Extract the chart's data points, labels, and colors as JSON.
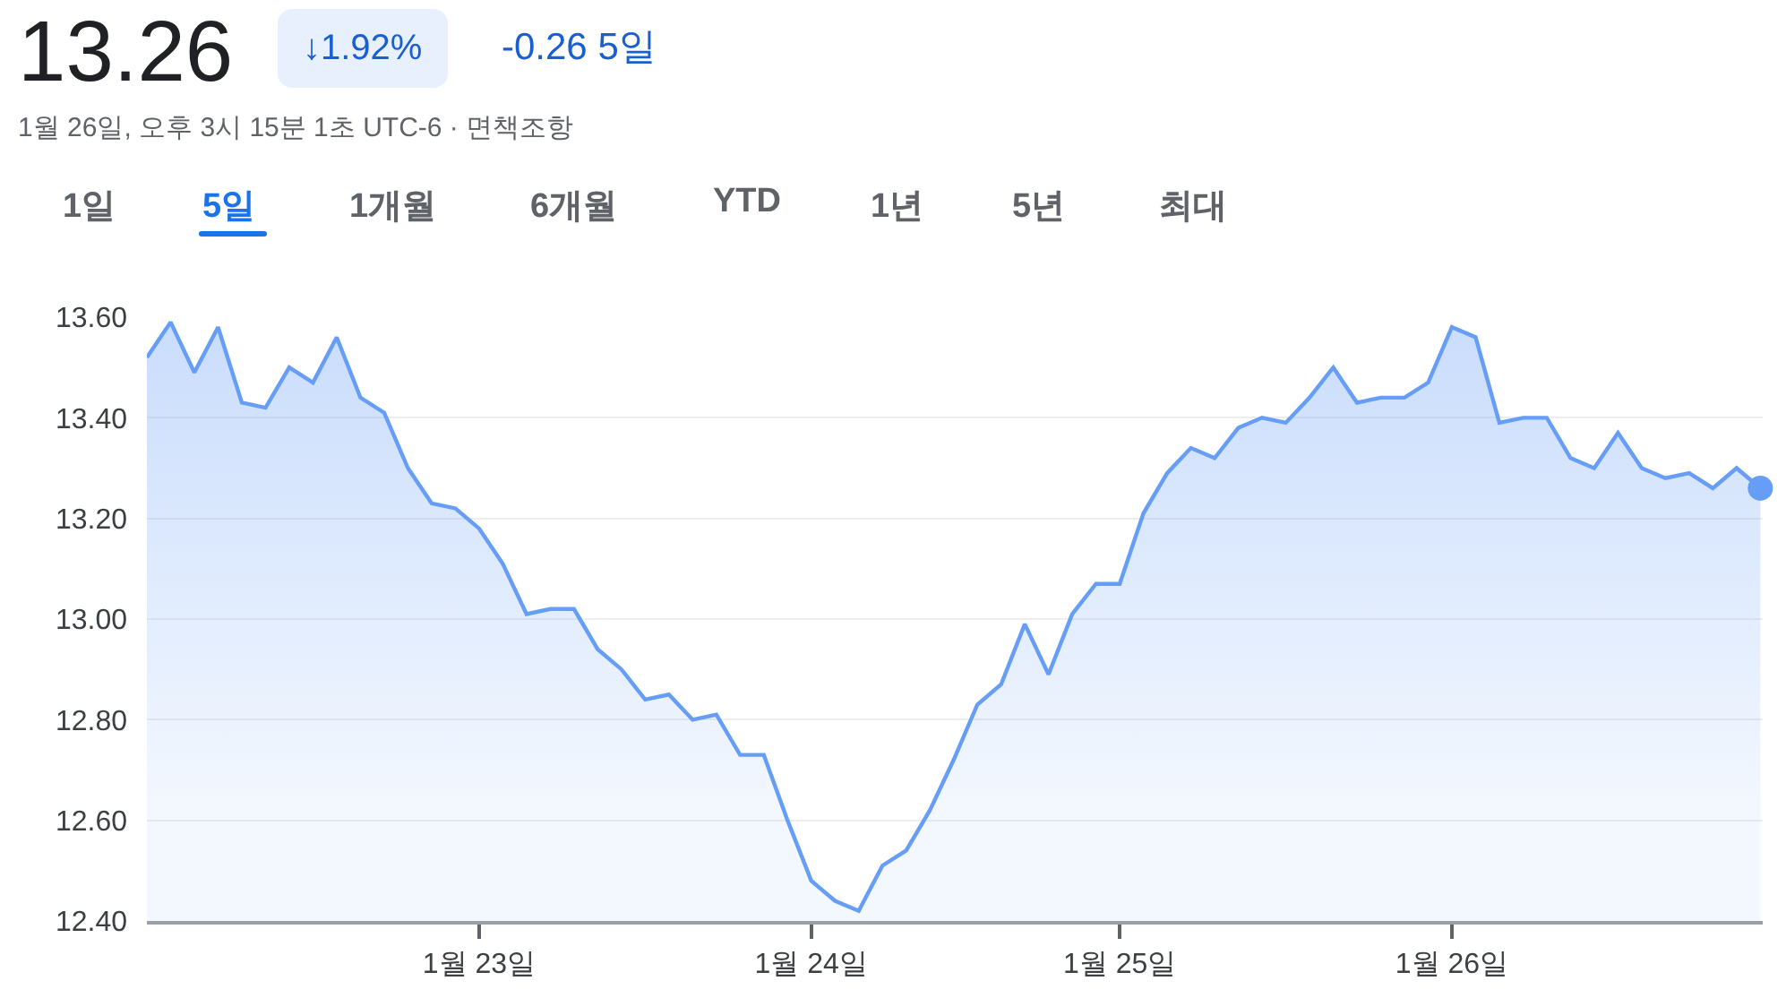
{
  "chart_data": {
    "type": "area",
    "title": "13.26",
    "subtitle": "1월 26일, 오후 3시 15분 1초 UTC-6 · 면책조항",
    "annotations": [
      "↓1.92%",
      "-0.26 5일",
      "1일",
      "5일",
      "1개월",
      "6개월",
      "YTD",
      "1년",
      "5년",
      "최대"
    ],
    "categories": [
      null,
      null,
      null,
      null,
      null,
      null,
      null,
      null,
      null,
      null,
      null,
      null,
      null,
      null,
      "1월 23일",
      null,
      null,
      null,
      null,
      null,
      null,
      null,
      null,
      null,
      null,
      null,
      null,
      null,
      "1월 24일",
      null,
      null,
      null,
      null,
      null,
      null,
      null,
      null,
      null,
      null,
      null,
      null,
      "1월 25일",
      null,
      null,
      null,
      null,
      null,
      null,
      null,
      null,
      null,
      null,
      null,
      null,
      null,
      "1월 26일",
      null,
      null,
      null,
      null,
      null,
      null,
      null,
      null,
      null,
      null,
      null,
      null,
      null
    ],
    "series": [
      {
        "color": "#669df6",
        "values": [
          13.52,
          13.59,
          13.49,
          13.58,
          13.43,
          13.42,
          13.5,
          13.47,
          13.56,
          13.44,
          13.41,
          13.3,
          13.23,
          13.22,
          13.18,
          13.11,
          13.01,
          13.02,
          13.02,
          12.94,
          12.9,
          12.84,
          12.85,
          12.8,
          12.81,
          12.73,
          12.73,
          12.6,
          12.48,
          12.44,
          12.42,
          12.51,
          12.54,
          12.62,
          12.72,
          12.83,
          12.87,
          12.99,
          12.89,
          13.01,
          13.07,
          13.07,
          13.21,
          13.29,
          13.34,
          13.32,
          13.38,
          13.4,
          13.39,
          13.44,
          13.5,
          13.43,
          13.44,
          13.44,
          13.47,
          13.58,
          13.56,
          13.39,
          13.4,
          13.4,
          13.32,
          13.3,
          13.37,
          13.3,
          13.28,
          13.29,
          13.26,
          13.3,
          13.26
        ]
      },
      {
        "type": "scatter",
        "color": "#669df6",
        "values": [
          null,
          null,
          null,
          null,
          null,
          null,
          null,
          null,
          null,
          null,
          null,
          null,
          null,
          null,
          null,
          null,
          null,
          null,
          null,
          null,
          null,
          null,
          null,
          null,
          null,
          null,
          null,
          null,
          null,
          null,
          null,
          null,
          null,
          null,
          null,
          null,
          null,
          null,
          null,
          null,
          null,
          null,
          null,
          null,
          null,
          null,
          null,
          null,
          null,
          null,
          null,
          null,
          null,
          null,
          null,
          null,
          null,
          null,
          null,
          null,
          null,
          null,
          null,
          null,
          null,
          null,
          null,
          null,
          13.26
        ]
      }
    ],
    "ylim": [
      12.4,
      13.6
    ],
    "yticks": [
      {
        "value": 12.4,
        "label": "12.40"
      },
      {
        "value": 12.6,
        "label": "12.60"
      },
      {
        "value": 12.8,
        "label": "12.80"
      },
      {
        "value": 13.0,
        "label": "13.00"
      },
      {
        "value": 13.2,
        "label": "13.20"
      },
      {
        "value": 13.4,
        "label": "13.40"
      },
      {
        "value": 13.6,
        "label": "13.60"
      }
    ],
    "grid": "y"
  }
}
